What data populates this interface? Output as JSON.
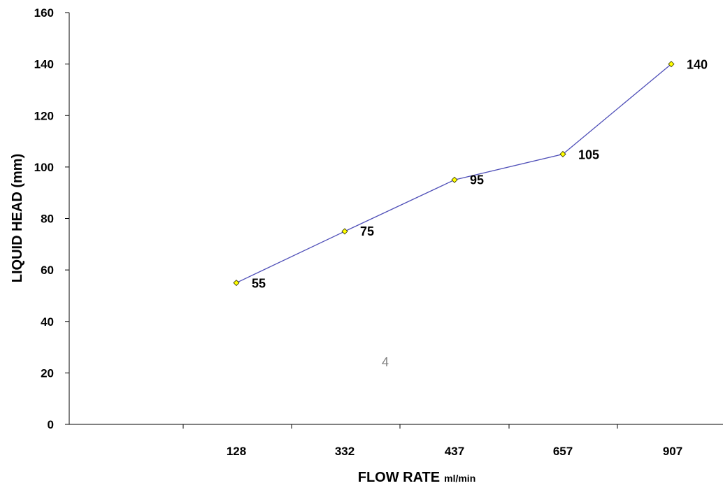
{
  "chart_data": {
    "type": "line",
    "categories": [
      "128",
      "332",
      "437",
      "657",
      "907"
    ],
    "series": [
      {
        "values": [
          55,
          75,
          95,
          105,
          140
        ],
        "color": "#4F4FB8",
        "marker": "diamond",
        "marker_color": "#FFFF00"
      }
    ],
    "data_labels": [
      "55",
      "75",
      "95",
      "105",
      "140"
    ],
    "title": "",
    "xlabel": "FLOW RATE",
    "xlabel_unit": "ml/min",
    "ylabel": "LIQUID HEAD (mm)",
    "ylim": [
      0,
      160
    ],
    "yticks": [
      "0",
      "20",
      "40",
      "60",
      "80",
      "100",
      "120",
      "140",
      "160"
    ],
    "grid": false,
    "legend": "none",
    "annotation": "4"
  }
}
